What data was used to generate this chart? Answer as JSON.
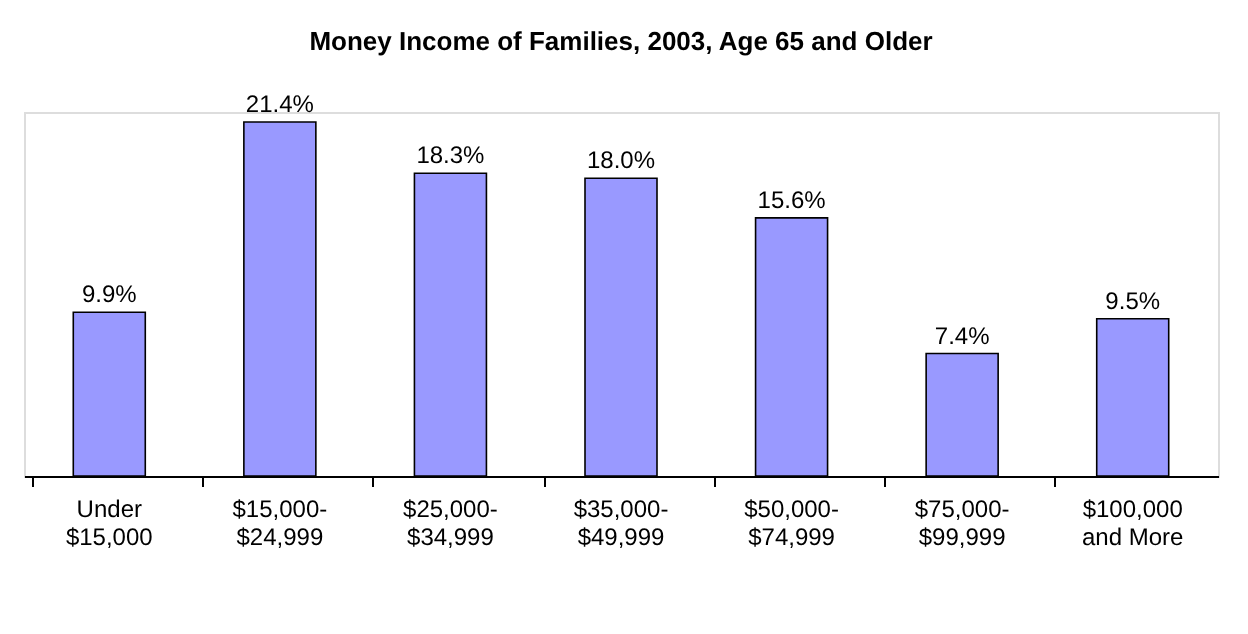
{
  "chart_data": {
    "type": "bar",
    "title": "Money Income of Families, 2003, Age 65 and Older",
    "categories": [
      "Under\n$15,000",
      "$15,000-\n$24,999",
      "$25,000-\n$34,999",
      "$35,000-\n$49,999",
      "$50,000-\n$74,999",
      "$75,000-\n$99,999",
      "$100,000\nand More"
    ],
    "values": [
      9.9,
      21.4,
      18.3,
      18.0,
      15.6,
      7.4,
      9.5
    ],
    "value_labels": [
      "9.9%",
      "21.4%",
      "18.3%",
      "18.0%",
      "15.6%",
      "7.4%",
      "9.5%"
    ],
    "color": "#9999ff"
  }
}
